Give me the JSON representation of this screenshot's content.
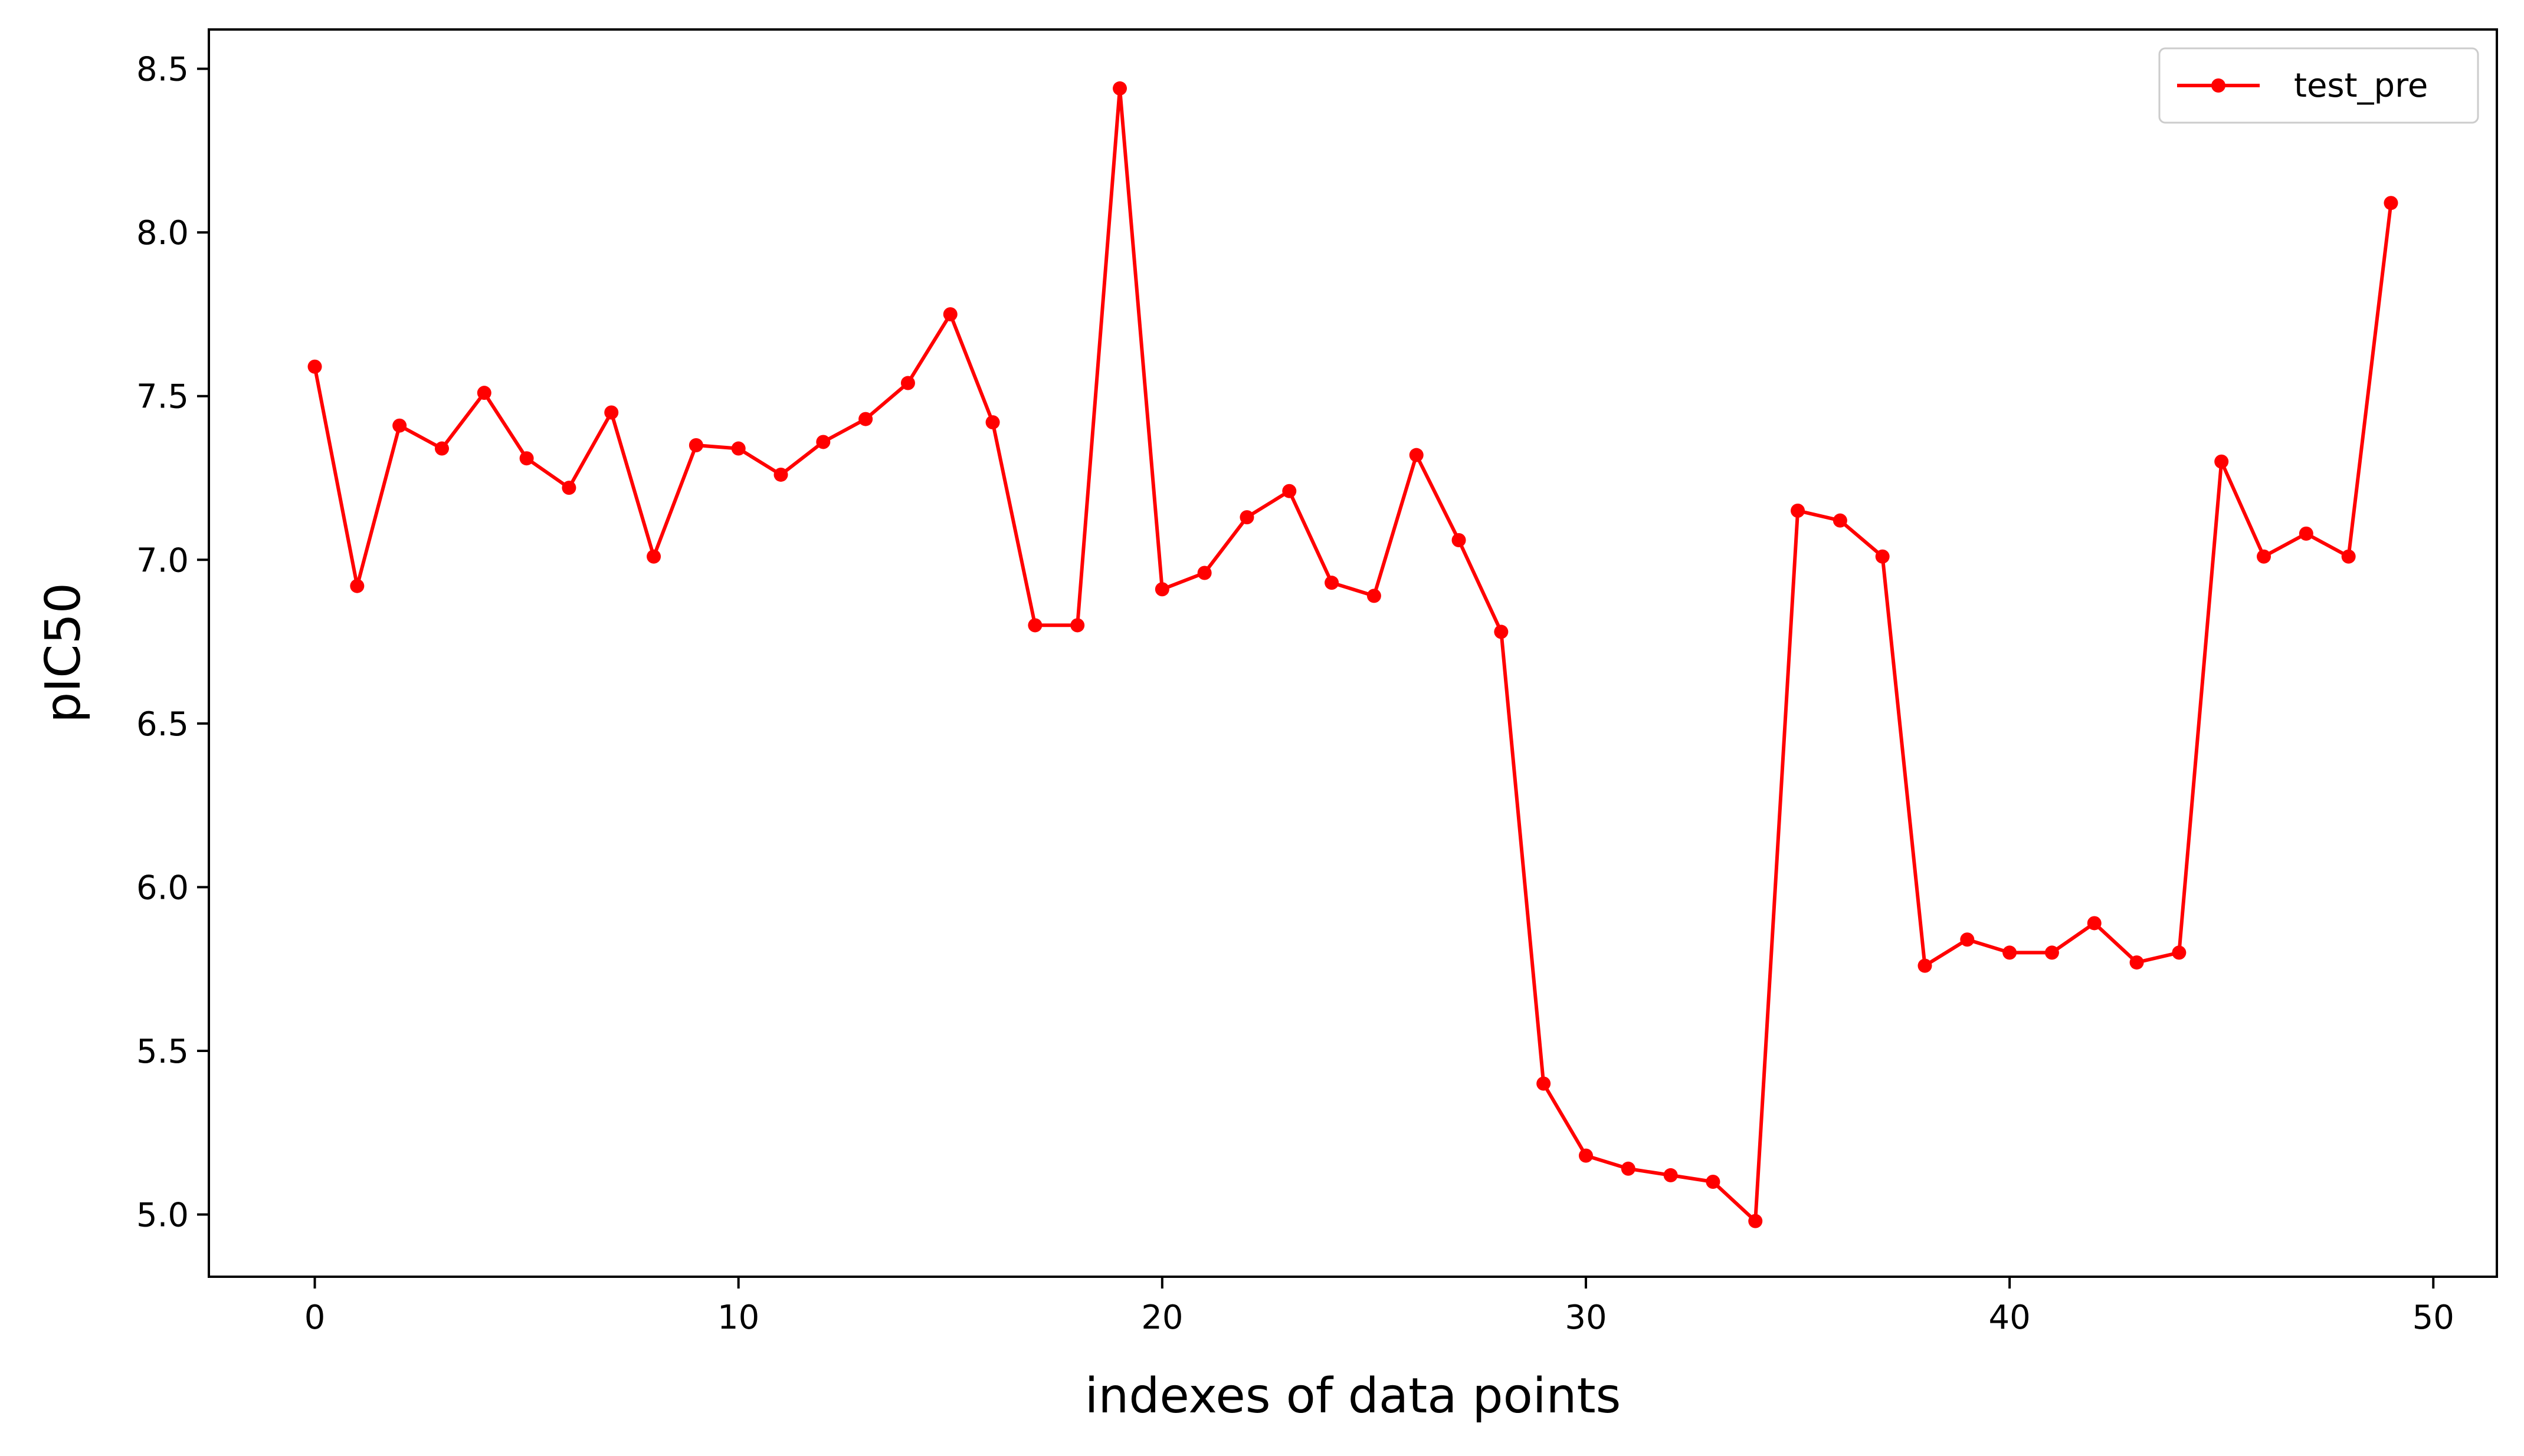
{
  "chart_data": {
    "type": "line",
    "title": "",
    "xlabel": "indexes of data points",
    "ylabel": "pIC50",
    "xlim": [
      -2.5,
      51.5
    ],
    "ylim": [
      4.81,
      8.62
    ],
    "x_ticks": [
      0,
      10,
      20,
      30,
      40,
      50
    ],
    "y_ticks": [
      5.0,
      5.5,
      6.0,
      6.5,
      7.0,
      7.5,
      8.0,
      8.5
    ],
    "x_tick_labels": [
      "0",
      "10",
      "20",
      "30",
      "40",
      "50"
    ],
    "y_tick_labels": [
      "5.0",
      "5.5",
      "6.0",
      "6.5",
      "7.0",
      "7.5",
      "8.0",
      "8.5"
    ],
    "grid": false,
    "legend": {
      "placement": "top-right"
    },
    "series": [
      {
        "name": "test_pre",
        "color": "#ff0000",
        "marker": "circle",
        "x": [
          0,
          1,
          2,
          3,
          4,
          5,
          6,
          7,
          8,
          9,
          10,
          11,
          12,
          13,
          14,
          15,
          16,
          17,
          18,
          19,
          20,
          21,
          22,
          23,
          24,
          25,
          26,
          27,
          28,
          29,
          30,
          31,
          32,
          33,
          34,
          35,
          36,
          37,
          38,
          39,
          40,
          41,
          42,
          43,
          44,
          45,
          46,
          47,
          48,
          49
        ],
        "values": [
          7.59,
          6.92,
          7.41,
          7.34,
          7.51,
          7.31,
          7.22,
          7.45,
          7.01,
          7.35,
          7.34,
          7.26,
          7.36,
          7.43,
          7.54,
          7.75,
          7.42,
          6.8,
          6.8,
          8.44,
          6.91,
          6.96,
          7.13,
          7.21,
          6.93,
          6.89,
          7.32,
          7.06,
          6.78,
          5.4,
          5.18,
          5.14,
          5.12,
          5.1,
          4.98,
          7.15,
          7.12,
          7.01,
          5.76,
          5.84,
          5.8,
          5.8,
          5.89,
          5.77,
          5.8,
          7.3,
          7.01,
          7.08,
          7.01,
          8.09
        ]
      }
    ]
  }
}
